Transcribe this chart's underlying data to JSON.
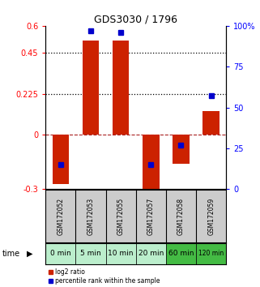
{
  "title": "GDS3030 / 1796",
  "samples": [
    "GSM172052",
    "GSM172053",
    "GSM172055",
    "GSM172057",
    "GSM172058",
    "GSM172059"
  ],
  "time_labels": [
    "0 min",
    "5 min",
    "10 min",
    "20 min",
    "60 min",
    "120 min"
  ],
  "log2_ratio": [
    -0.27,
    0.52,
    0.52,
    -0.32,
    -0.16,
    0.13
  ],
  "percentile_rank": [
    15,
    97,
    96,
    15,
    27,
    57
  ],
  "ylim_left": [
    -0.3,
    0.6
  ],
  "ylim_right": [
    0,
    100
  ],
  "yticks_left": [
    -0.3,
    0,
    0.225,
    0.45,
    0.6
  ],
  "yticks_right": [
    0,
    25,
    50,
    75,
    100
  ],
  "hlines": [
    0.45,
    0.225
  ],
  "bar_color": "#cc2200",
  "dot_color": "#0000cc",
  "bar_width": 0.55,
  "dot_size": 28,
  "grid_color": "#000000",
  "zero_dash_color": "#aa2222",
  "bg_color": "#ffffff",
  "plot_bg": "#ffffff",
  "time_row_colors": [
    "#bbeecc",
    "#bbeecc",
    "#bbeecc",
    "#bbeecc",
    "#44bb44",
    "#44bb44"
  ],
  "sample_bg": "#cccccc",
  "legend_red_label": "log2 ratio",
  "legend_blue_label": "percentile rank within the sample"
}
